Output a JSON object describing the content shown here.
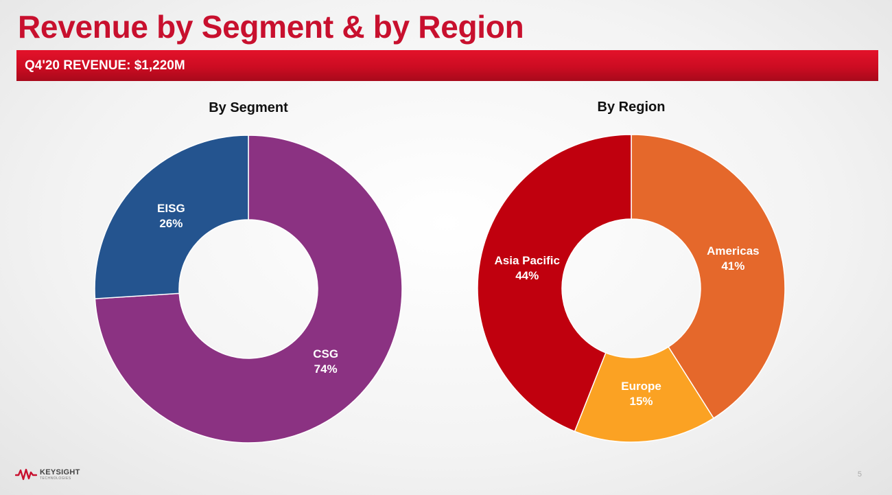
{
  "slide": {
    "title": "Revenue by Segment & by Region",
    "banner": "Q4'20 REVENUE: $1,220M",
    "logo": {
      "brand": "KEYSIGHT",
      "sub": "TECHNOLOGIES"
    },
    "page_number": "5"
  },
  "chart_data": [
    {
      "type": "pie",
      "title": "By Segment",
      "donut": true,
      "slices": [
        {
          "label": "CSG",
          "value": 74,
          "display": "74%",
          "color": "#8b3282"
        },
        {
          "label": "EISG",
          "value": 26,
          "display": "26%",
          "color": "#24548f"
        }
      ]
    },
    {
      "type": "pie",
      "title": "By Region",
      "donut": true,
      "slices": [
        {
          "label": "Americas",
          "value": 41,
          "display": "41%",
          "color": "#e5682b"
        },
        {
          "label": "Europe",
          "value": 15,
          "display": "15%",
          "color": "#fba223"
        },
        {
          "label": "Asia Pacific",
          "value": 44,
          "display": "44%",
          "color": "#c0000e"
        }
      ]
    }
  ]
}
